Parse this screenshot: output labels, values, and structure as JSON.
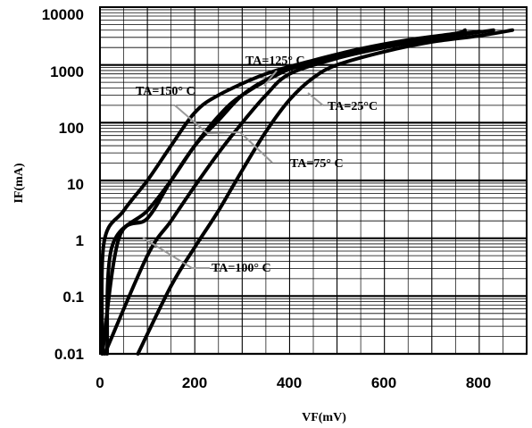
{
  "chart_data": {
    "type": "line",
    "title": "",
    "xlabel": "VF(mV)",
    "ylabel": "IF(mA)",
    "xlim": [
      0,
      900
    ],
    "ylim": [
      0.01,
      10000
    ],
    "yscale": "log",
    "grid": true,
    "x_ticks": [
      "0",
      "200",
      "400",
      "600",
      "800"
    ],
    "y_ticks": [
      "0.01",
      "0.1",
      "1",
      "10",
      "100",
      "1000",
      "10000"
    ],
    "series": [
      {
        "name": "TA=150° C",
        "points": [
          [
            5,
            0.01
          ],
          [
            8,
            0.8
          ],
          [
            50,
            3
          ],
          [
            100,
            10
          ],
          [
            150,
            40
          ],
          [
            200,
            150
          ],
          [
            250,
            300
          ],
          [
            350,
            700
          ],
          [
            450,
            1200
          ],
          [
            550,
            1900
          ],
          [
            650,
            2700
          ],
          [
            750,
            3500
          ],
          [
            770,
            4000
          ]
        ]
      },
      {
        "name": "TA=125° C",
        "points": [
          [
            15,
            0.01
          ],
          [
            25,
            0.7
          ],
          [
            100,
            3
          ],
          [
            150,
            10
          ],
          [
            200,
            40
          ],
          [
            250,
            130
          ],
          [
            300,
            300
          ],
          [
            400,
            850
          ],
          [
            500,
            1400
          ],
          [
            600,
            2100
          ],
          [
            700,
            3000
          ],
          [
            800,
            3800
          ]
        ]
      },
      {
        "name": "TA=100° C",
        "points": [
          [
            5,
            0.01
          ],
          [
            40,
            1
          ],
          [
            100,
            2.2
          ],
          [
            150,
            10
          ],
          [
            200,
            40
          ],
          [
            250,
            110
          ],
          [
            300,
            300
          ],
          [
            350,
            550
          ],
          [
            400,
            850
          ],
          [
            500,
            1350
          ],
          [
            600,
            2050
          ],
          [
            700,
            2800
          ],
          [
            800,
            3800
          ]
        ]
      },
      {
        "name": "TA=75° C",
        "points": [
          [
            10,
            0.01
          ],
          [
            100,
            0.5
          ],
          [
            150,
            2
          ],
          [
            200,
            8
          ],
          [
            250,
            30
          ],
          [
            300,
            100
          ],
          [
            350,
            300
          ],
          [
            400,
            700
          ],
          [
            500,
            1300
          ],
          [
            600,
            2000
          ],
          [
            700,
            2800
          ],
          [
            830,
            4000
          ]
        ]
      },
      {
        "name": "TA=25°C",
        "points": [
          [
            80,
            0.01
          ],
          [
            150,
            0.15
          ],
          [
            200,
            0.7
          ],
          [
            250,
            3
          ],
          [
            300,
            15
          ],
          [
            350,
            70
          ],
          [
            400,
            250
          ],
          [
            450,
            600
          ],
          [
            500,
            1000
          ],
          [
            600,
            1700
          ],
          [
            700,
            2500
          ],
          [
            800,
            3200
          ],
          [
            870,
            4000
          ]
        ]
      }
    ],
    "annotations": [
      {
        "text": "TA=125° C"
      },
      {
        "text": "TA=150° C"
      },
      {
        "text": "TA=25°C"
      },
      {
        "text": "TA=75° C"
      },
      {
        "text": "TA=100° C"
      }
    ]
  }
}
